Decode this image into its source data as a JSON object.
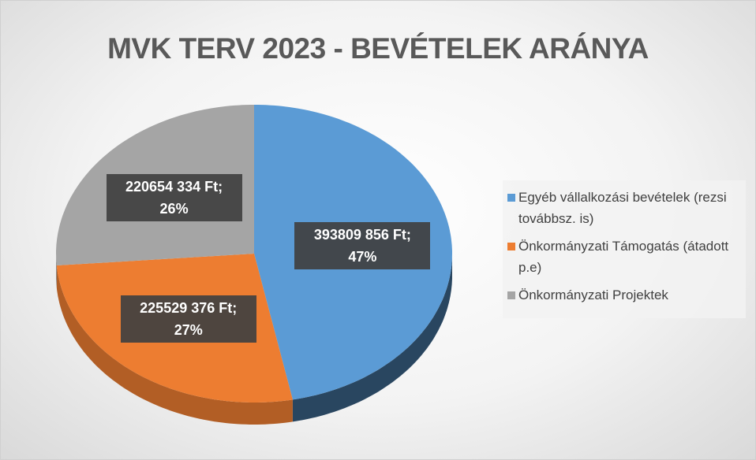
{
  "chart_data": {
    "type": "pie3d",
    "title": "MVK TERV 2023 - BEVÉTELEK ARÁNYA",
    "categories": [
      "Egyéb vállalkozási bevételek (rezsi továbbsz. is)",
      "Önkormányzati Támogatás (átadott p.e)",
      "Önkormányzati Projektek"
    ],
    "values": [
      393809856,
      225529376,
      220654334
    ],
    "value_labels": [
      "393809 856 Ft; 47%",
      "225529 376 Ft; 27%",
      "220654 334 Ft; 26%"
    ],
    "colors": [
      "#5b9bd5",
      "#ed7d31",
      "#a5a5a5"
    ],
    "legend": "right"
  }
}
